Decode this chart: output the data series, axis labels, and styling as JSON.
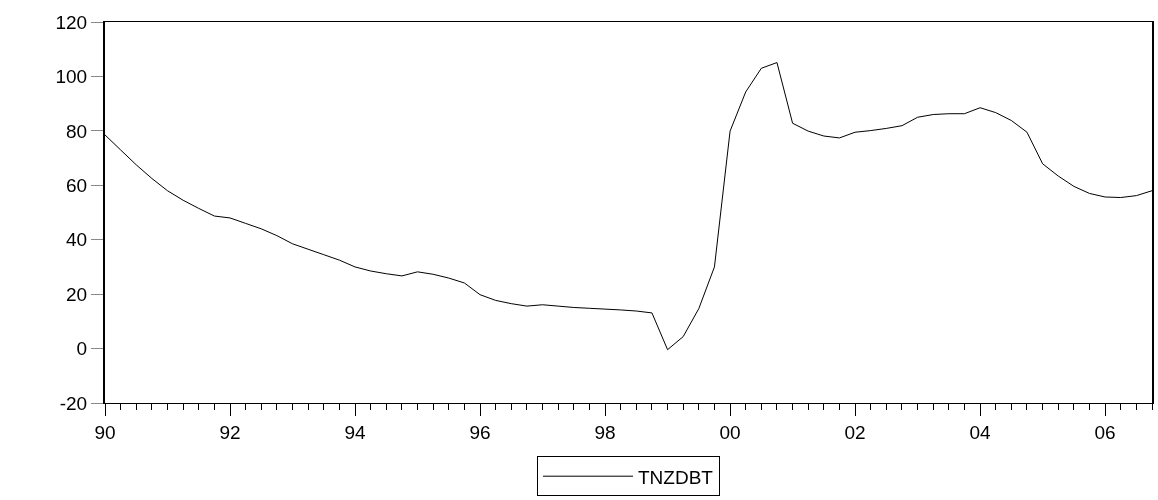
{
  "chart_data": {
    "type": "line",
    "x": [
      1990.0,
      1990.25,
      1990.5,
      1990.75,
      1991.0,
      1991.25,
      1991.5,
      1991.75,
      1992.0,
      1992.25,
      1992.5,
      1992.75,
      1993.0,
      1993.25,
      1993.5,
      1993.75,
      1994.0,
      1994.25,
      1994.5,
      1994.75,
      1995.0,
      1995.25,
      1995.5,
      1995.75,
      1996.0,
      1996.25,
      1996.5,
      1996.75,
      1997.0,
      1997.25,
      1997.5,
      1997.75,
      1998.0,
      1998.25,
      1998.5,
      1998.75,
      1999.0,
      1999.25,
      1999.5,
      1999.75,
      2000.0,
      2000.25,
      2000.5,
      2000.75,
      2001.0,
      2001.25,
      2001.5,
      2001.75,
      2002.0,
      2002.25,
      2002.5,
      2002.75,
      2003.0,
      2003.25,
      2003.5,
      2003.75,
      2004.0,
      2004.25,
      2004.5,
      2004.75,
      2005.0,
      2005.25,
      2005.5,
      2005.75,
      2006.0,
      2006.25,
      2006.5,
      2006.75
    ],
    "series": [
      {
        "name": "TNZDBT",
        "color": "#000000",
        "values": [
          78.5,
          73,
          67.5,
          62.5,
          58,
          54.5,
          51.5,
          48.7,
          48,
          46,
          44,
          41.5,
          38.5,
          36.5,
          34.5,
          32.5,
          30,
          28.5,
          27.5,
          26.7,
          28.2,
          27.3,
          25.9,
          24.1,
          19.8,
          17.7,
          16.5,
          15.6,
          16.1,
          15.6,
          15.1,
          14.8,
          14.5,
          14.2,
          13.8,
          13.1,
          -0.4,
          4.4,
          14.7,
          30,
          79.9,
          94.3,
          103,
          105.1,
          82.8,
          79.9,
          78.1,
          77.4,
          79.5,
          80.1,
          80.9,
          81.9,
          85,
          86,
          86.3,
          86.3,
          88.5,
          86.7,
          83.8,
          79.5,
          67.9,
          63.4,
          59.6,
          57,
          55.7,
          55.5,
          56.2,
          58
        ]
      }
    ],
    "xlim": [
      1990,
      2006.75
    ],
    "xticks": [
      {
        "value": 1990,
        "label": "90"
      },
      {
        "value": 1992,
        "label": "92"
      },
      {
        "value": 1994,
        "label": "94"
      },
      {
        "value": 1996,
        "label": "96"
      },
      {
        "value": 1998,
        "label": "98"
      },
      {
        "value": 2000,
        "label": "00"
      },
      {
        "value": 2002,
        "label": "02"
      },
      {
        "value": 2004,
        "label": "04"
      },
      {
        "value": 2006,
        "label": "06"
      }
    ],
    "ylim": [
      -20,
      120
    ],
    "yticks": [
      -20,
      0,
      20,
      40,
      60,
      80,
      100,
      120
    ],
    "legend": "bottom",
    "line_style": "solid",
    "marker": "none"
  }
}
